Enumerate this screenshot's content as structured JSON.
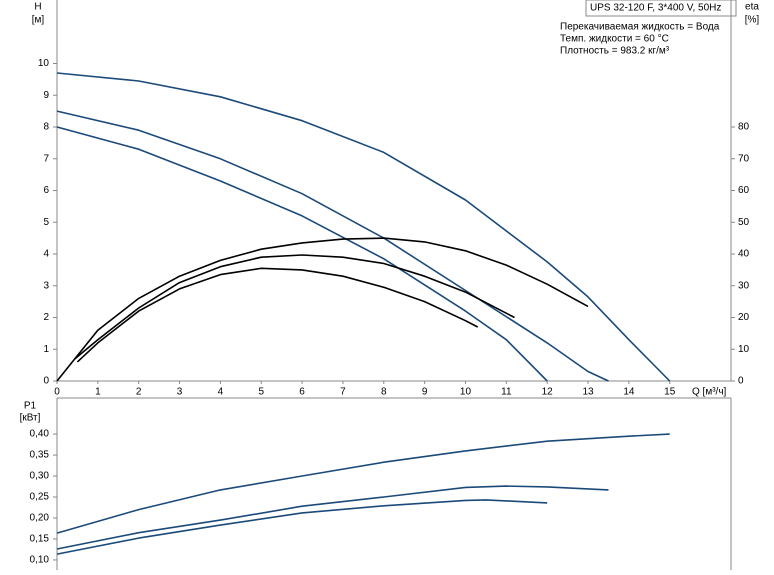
{
  "chart_data": [
    {
      "type": "line",
      "title": "UPS 32-120 F, 3*400 V, 50Hz",
      "annotations": [
        "Перекачиваемая жидкость = Вода",
        "Темп. жидкости = 60 °C",
        "Плотность = 983.2 кг/м³"
      ],
      "ylabel": "H",
      "yunit": "[м]",
      "y2label": "eta",
      "y2unit": "[%]",
      "xlabel": "Q [м³/ч]",
      "xlim": [
        0,
        16.5
      ],
      "xticks": [
        0,
        1,
        2,
        3,
        4,
        5,
        6,
        7,
        8,
        9,
        10,
        11,
        12,
        13,
        14,
        15
      ],
      "ylim": [
        0,
        12
      ],
      "yticks": [
        0,
        1,
        2,
        3,
        4,
        5,
        6,
        7,
        8,
        9,
        10
      ],
      "y2lim": [
        0,
        120
      ],
      "y2ticks": [
        0,
        10,
        20,
        30,
        40,
        50,
        60,
        70,
        80
      ],
      "series": [
        {
          "color": "#1b4a7a",
          "x": [
            0,
            2,
            4,
            6,
            8,
            10,
            12,
            13,
            14,
            15
          ],
          "values": [
            9.7,
            9.45,
            8.95,
            8.2,
            7.2,
            5.7,
            3.75,
            2.65,
            1.3,
            0
          ]
        },
        {
          "color": "#1b4a7a",
          "x": [
            0,
            2,
            4,
            6,
            8,
            10,
            12,
            13,
            13.5
          ],
          "values": [
            8.5,
            7.9,
            7.0,
            5.9,
            4.5,
            2.85,
            1.2,
            0.3,
            0
          ]
        },
        {
          "color": "#1b4a7a",
          "x": [
            0,
            2,
            4,
            6,
            8,
            10,
            11,
            12
          ],
          "values": [
            8.0,
            7.3,
            6.3,
            5.2,
            3.85,
            2.2,
            1.3,
            0
          ]
        },
        {
          "color": "#000000",
          "axis": "y2",
          "x": [
            0,
            1,
            2,
            3,
            4,
            5,
            6,
            7,
            8,
            9,
            10,
            11,
            12,
            13
          ],
          "values": [
            0,
            16,
            26,
            33,
            38,
            41.5,
            43.5,
            44.7,
            45,
            43.8,
            41,
            36.5,
            30.5,
            23.5
          ]
        },
        {
          "color": "#000000",
          "axis": "y2",
          "x": [
            0.44,
            1,
            2,
            3,
            4,
            5,
            6,
            7,
            8,
            9,
            10,
            11.2
          ],
          "values": [
            7,
            13,
            23,
            31,
            36,
            39,
            39.7,
            39,
            37,
            33,
            28,
            20
          ]
        },
        {
          "color": "#000000",
          "axis": "y2",
          "x": [
            0.5,
            1,
            2,
            3,
            4,
            5,
            6,
            7,
            8,
            9,
            10,
            10.3
          ],
          "values": [
            6,
            12,
            22,
            29,
            33.5,
            35.5,
            35,
            33,
            29.5,
            25,
            19,
            17
          ]
        }
      ]
    },
    {
      "type": "line",
      "ylabel": "P1",
      "yunit": "[кВт]",
      "xlim": [
        0,
        16.5
      ],
      "ylim": [
        0.076,
        0.486
      ],
      "yticks": [
        {
          "value": 0.1,
          "label": "0,10"
        },
        {
          "value": 0.15,
          "label": "0,15"
        },
        {
          "value": 0.2,
          "label": "0,20"
        },
        {
          "value": 0.25,
          "label": "0,25"
        },
        {
          "value": 0.3,
          "label": "0,30"
        },
        {
          "value": 0.35,
          "label": "0,35"
        },
        {
          "value": 0.4,
          "label": "0,40"
        }
      ],
      "series": [
        {
          "color": "#1b4a7a",
          "x": [
            0,
            2,
            4,
            6,
            8,
            10,
            12,
            14,
            15
          ],
          "values": [
            0.164,
            0.22,
            0.267,
            0.3,
            0.333,
            0.36,
            0.383,
            0.395,
            0.4
          ]
        },
        {
          "color": "#1b4a7a",
          "x": [
            0,
            2,
            4,
            6,
            8,
            10,
            11,
            12,
            13.5
          ],
          "values": [
            0.126,
            0.165,
            0.195,
            0.228,
            0.25,
            0.273,
            0.276,
            0.274,
            0.267
          ]
        },
        {
          "color": "#1b4a7a",
          "x": [
            0,
            2,
            4,
            6,
            8,
            10,
            10.5,
            12
          ],
          "values": [
            0.114,
            0.152,
            0.183,
            0.212,
            0.229,
            0.242,
            0.243,
            0.236
          ]
        }
      ]
    }
  ]
}
